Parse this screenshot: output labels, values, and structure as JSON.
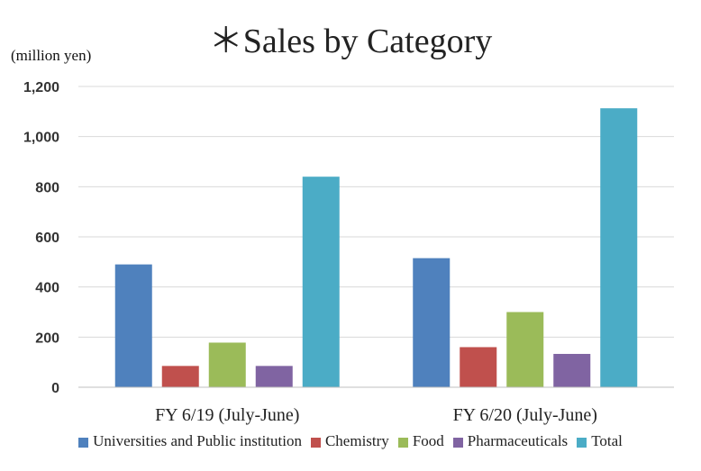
{
  "chart_data": {
    "type": "bar",
    "title": "＊Sales by Category",
    "ylabel": "(million yen)",
    "xlabel": "",
    "ylim": [
      0,
      1200
    ],
    "yticks": [
      "0",
      "200",
      "400",
      "600",
      "800",
      "1,000",
      "1,200"
    ],
    "ytick_values": [
      0,
      200,
      400,
      600,
      800,
      1000,
      1200
    ],
    "grid": true,
    "legend_position": "bottom",
    "categories": [
      "FY 6/19 (July-June)",
      "FY 6/20 (July-June)"
    ],
    "series": [
      {
        "name": "Universities and Public institution",
        "color": "#4F81BD",
        "values": [
          490,
          515
        ]
      },
      {
        "name": "Chemistry",
        "color": "#C0504D",
        "values": [
          85,
          160
        ]
      },
      {
        "name": "Food",
        "color": "#9BBB59",
        "values": [
          178,
          300
        ]
      },
      {
        "name": "Pharmaceuticals",
        "color": "#8064A2",
        "values": [
          85,
          133
        ]
      },
      {
        "name": "Total",
        "color": "#4BACC6",
        "values": [
          840,
          1113
        ]
      }
    ]
  }
}
